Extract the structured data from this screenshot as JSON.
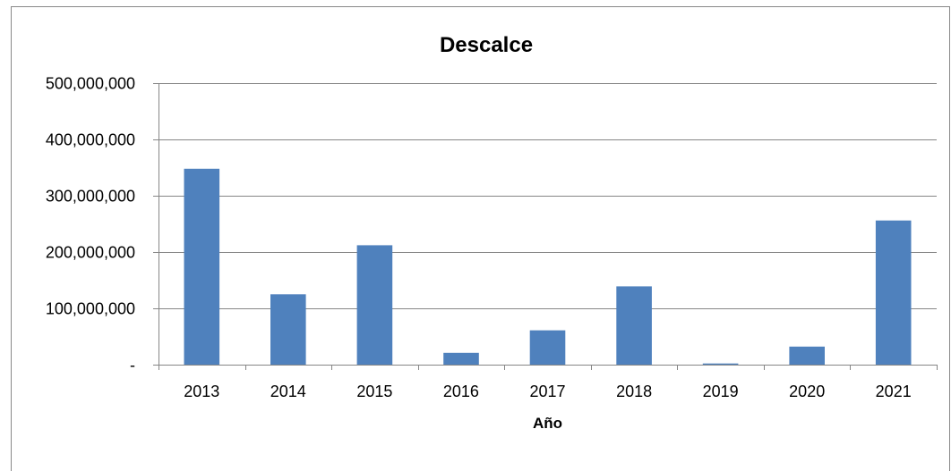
{
  "chart_data": {
    "type": "bar",
    "title": "Descalce",
    "xlabel": "Año",
    "ylabel": "",
    "categories": [
      "2013",
      "2014",
      "2015",
      "2016",
      "2017",
      "2018",
      "2019",
      "2020",
      "2021"
    ],
    "values": [
      348000000,
      125000000,
      212000000,
      21000000,
      61000000,
      139000000,
      2000000,
      32000000,
      256000000
    ],
    "ylim": [
      0,
      500000000
    ],
    "yticks": [
      0,
      100000000,
      200000000,
      300000000,
      400000000,
      500000000
    ],
    "ytick_labels": [
      "-",
      "100,000,000",
      "200,000,000",
      "300,000,000",
      "400,000,000",
      "500,000,000"
    ],
    "grid": true,
    "bar_color": "#4F81BD",
    "grid_color": "#868686",
    "legend": "none"
  }
}
